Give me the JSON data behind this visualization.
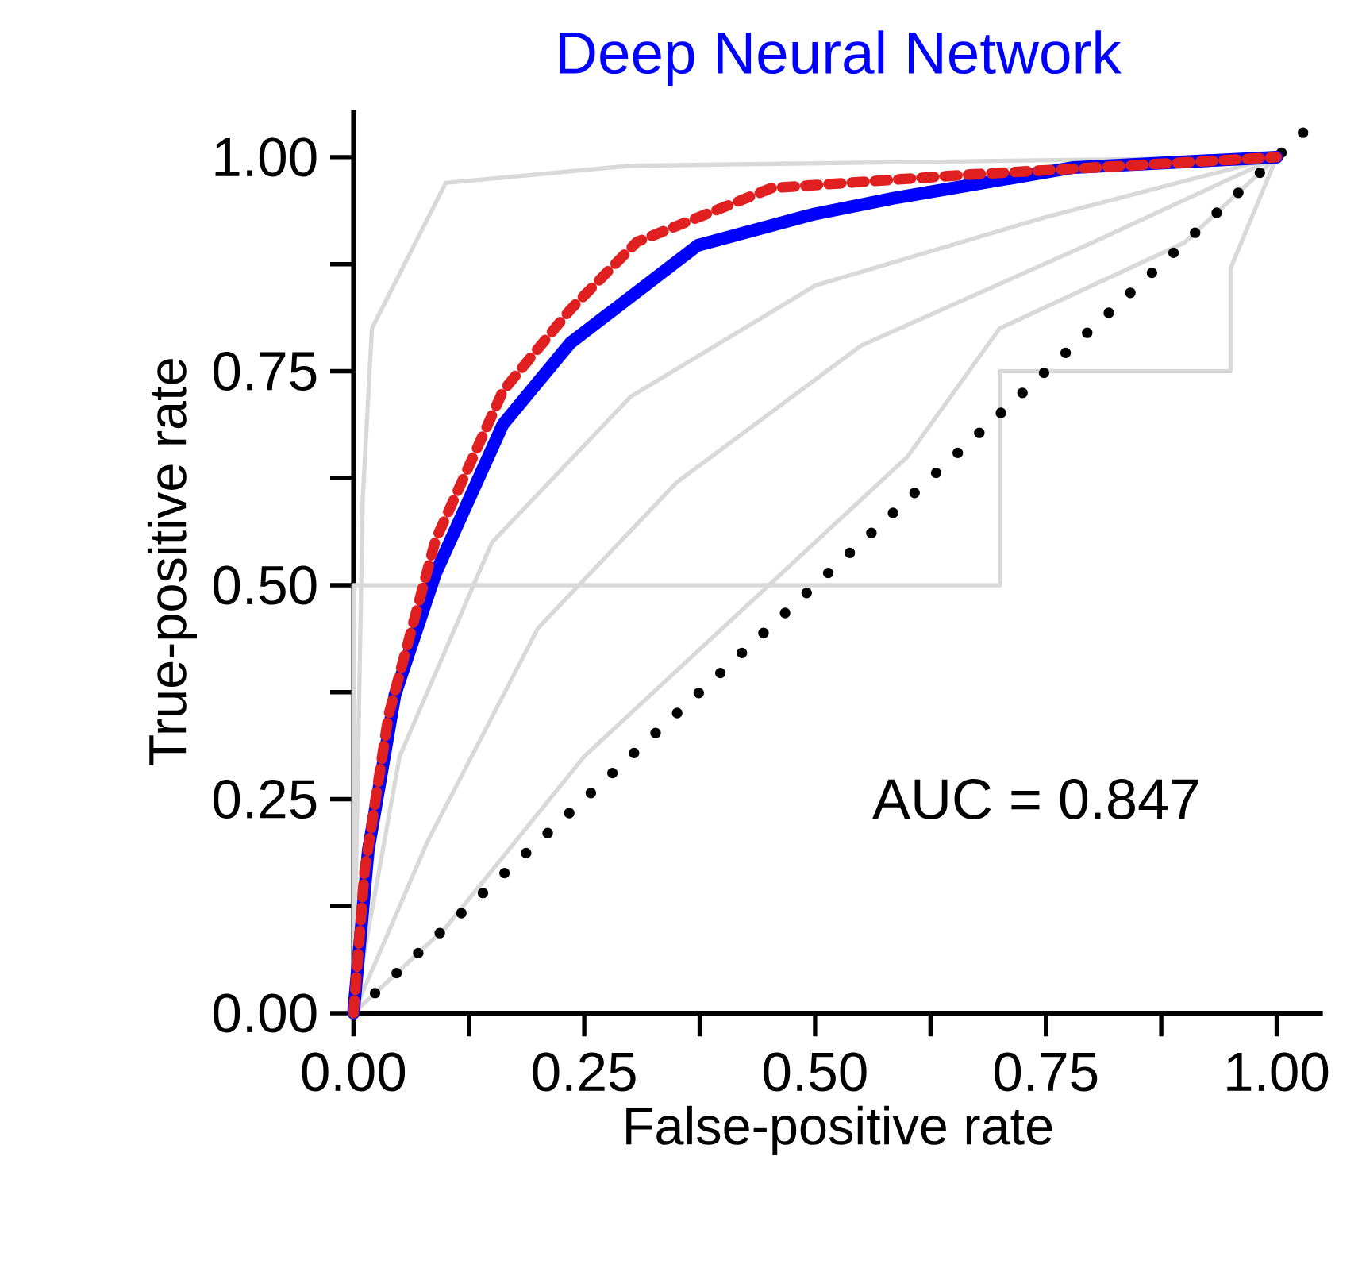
{
  "chart_data": {
    "type": "line",
    "title": "Deep Neural Network",
    "xlabel": "False-positive rate",
    "ylabel": "True-positive rate",
    "xlim": [
      0,
      1.05
    ],
    "ylim": [
      0,
      1.055
    ],
    "xticks": [
      {
        "value": 0,
        "label": "0.00"
      },
      {
        "value": 0.25,
        "label": "0.25"
      },
      {
        "value": 0.5,
        "label": "0.50"
      },
      {
        "value": 0.75,
        "label": "0.75"
      },
      {
        "value": 1,
        "label": "1.00"
      }
    ],
    "yticks": [
      {
        "value": 0,
        "label": "0.00"
      },
      {
        "value": 0.25,
        "label": "0.25"
      },
      {
        "value": 0.5,
        "label": "0.50"
      },
      {
        "value": 0.75,
        "label": "0.75"
      },
      {
        "value": 1,
        "label": "1.00"
      }
    ],
    "annotations": [
      "AUC =  0.847"
    ],
    "grid": false,
    "marker": "none",
    "series": [
      {
        "color": "#d9d9d9",
        "line_style": "solid",
        "x": [
          0,
          0.01,
          0.02,
          0.1,
          0.3,
          1
        ],
        "values": [
          0,
          0.6,
          0.8,
          0.97,
          0.99,
          1
        ]
      },
      {
        "color": "#d9d9d9",
        "line_style": "solid",
        "x": [
          0,
          0.05,
          0.15,
          0.3,
          0.5,
          0.75,
          1
        ],
        "values": [
          0,
          0.3,
          0.55,
          0.72,
          0.85,
          0.93,
          1
        ]
      },
      {
        "color": "#d9d9d9",
        "line_style": "solid",
        "x": [
          0,
          0.1,
          0.25,
          0.45,
          0.6,
          0.7,
          0.9,
          1
        ],
        "values": [
          0,
          0.1,
          0.3,
          0.5,
          0.65,
          0.8,
          0.9,
          1
        ]
      },
      {
        "color": "#d9d9d9",
        "line_style": "solid",
        "x": [
          0,
          0,
          0.7,
          0.7,
          0.95,
          0.95,
          1
        ],
        "values": [
          0,
          0.5,
          0.5,
          0.75,
          0.75,
          0.87,
          1
        ]
      },
      {
        "color": "#d9d9d9",
        "line_style": "solid",
        "x": [
          0,
          0.08,
          0.2,
          0.35,
          0.55,
          0.8,
          1
        ],
        "values": [
          0,
          0.2,
          0.45,
          0.62,
          0.78,
          0.9,
          1
        ]
      },
      {
        "color": "#000000",
        "line_style": "dotted",
        "x": [
          0,
          1.03
        ],
        "values": [
          0,
          1.03
        ]
      },
      {
        "color": "#0000ff",
        "line_style": "solid",
        "x": [
          0,
          0.016,
          0.045,
          0.089,
          0.162,
          0.235,
          0.373,
          0.497,
          0.585,
          0.78,
          1
        ],
        "values": [
          0,
          0.19,
          0.372,
          0.514,
          0.688,
          0.783,
          0.897,
          0.933,
          0.952,
          0.988,
          1
        ]
      },
      {
        "color": "#e02020",
        "line_style": "dashed",
        "x": [
          0,
          0.012,
          0.038,
          0.089,
          0.162,
          0.235,
          0.307,
          0.453,
          0.672,
          1
        ],
        "values": [
          0,
          0.166,
          0.348,
          0.553,
          0.727,
          0.822,
          0.901,
          0.964,
          0.98,
          1
        ]
      }
    ]
  }
}
